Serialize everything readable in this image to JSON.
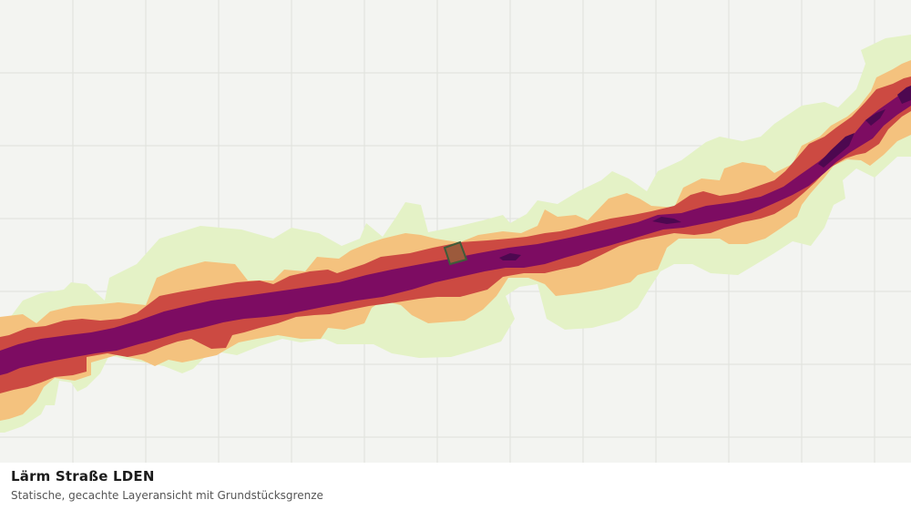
{
  "caption": {
    "title": "Lärm Straße LDEN",
    "subtitle": "Statische, gecachte Layeransicht mit Grundstücksgrenze"
  },
  "map": {
    "layer": "noise-road-lden",
    "background_color": "#f3f4f1",
    "grid_color": "#dfe1dc",
    "noise_bands": [
      {
        "name": "band-lowest",
        "color": "#e4f2c6"
      },
      {
        "name": "band-low",
        "color": "#f4c27e"
      },
      {
        "name": "band-mid",
        "color": "#cc4a42"
      },
      {
        "name": "band-high",
        "color": "#7d0c62"
      },
      {
        "name": "band-highest",
        "color": "#4d0850"
      }
    ],
    "parcel": {
      "fill": "#9c5a3c",
      "stroke": "#3f5c3a"
    }
  }
}
